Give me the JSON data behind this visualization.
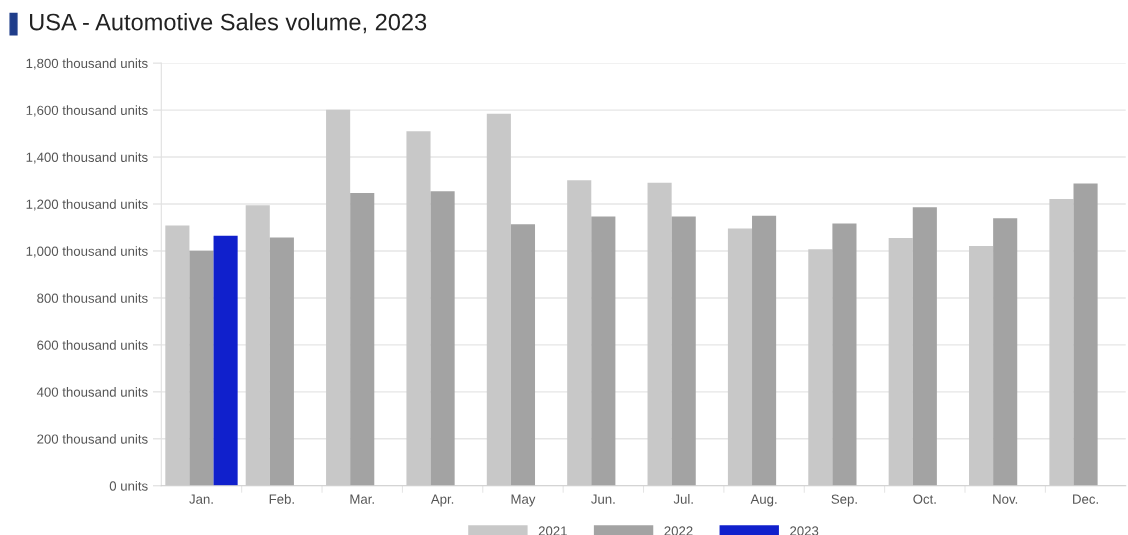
{
  "chart_data": {
    "type": "bar",
    "title": "USA - Automotive Sales volume, 2023",
    "categories": [
      "Jan.",
      "Feb.",
      "Mar.",
      "Apr.",
      "May",
      "Jun.",
      "Jul.",
      "Aug.",
      "Sep.",
      "Oct.",
      "Nov.",
      "Dec."
    ],
    "series": [
      {
        "name": "2021",
        "color": "#c8c8c8",
        "values": [
          1108,
          1195,
          1601,
          1510,
          1584,
          1301,
          1291,
          1096,
          1007,
          1055,
          1021,
          1221
        ]
      },
      {
        "name": "2022",
        "color": "#a3a3a3",
        "values": [
          1001,
          1057,
          1247,
          1254,
          1114,
          1147,
          1147,
          1150,
          1117,
          1186,
          1139,
          1287
        ]
      },
      {
        "name": "2023",
        "color": "#1020cc",
        "values": [
          1065,
          null,
          null,
          null,
          null,
          null,
          null,
          null,
          null,
          null,
          null,
          null
        ]
      }
    ],
    "ylim": [
      0,
      1800
    ],
    "yticks": [
      {
        "value": 0,
        "label": "0 units"
      },
      {
        "value": 200,
        "label": "200 thousand units"
      },
      {
        "value": 400,
        "label": "400 thousand units"
      },
      {
        "value": 600,
        "label": "600 thousand units"
      },
      {
        "value": 800,
        "label": "800 thousand units"
      },
      {
        "value": 1000,
        "label": "1,000 thousand units"
      },
      {
        "value": 1200,
        "label": "1,200 thousand units"
      },
      {
        "value": 1400,
        "label": "1,400 thousand units"
      },
      {
        "value": 1600,
        "label": "1,600 thousand units"
      },
      {
        "value": 1800,
        "label": "1,800 thousand units"
      }
    ],
    "grid": "y",
    "legend": "bottom"
  }
}
